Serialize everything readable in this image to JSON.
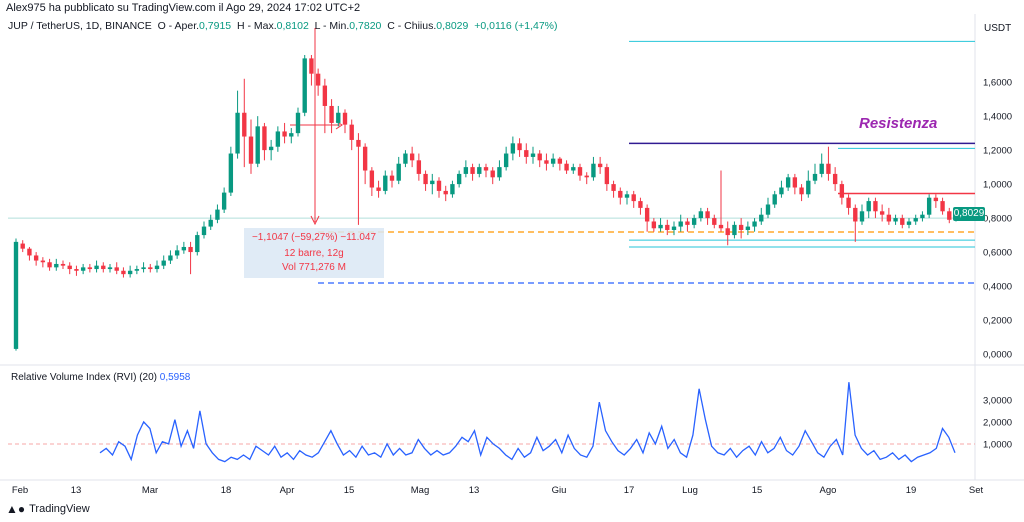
{
  "header": {
    "publisher": "Alex975 ha pubblicato su TradingView.com il Ago 29, 2024 17:02 UTC+2"
  },
  "symbol": {
    "name": "JUP / TetherUS, 1D, BINANCE",
    "open_label": "O - Aper.",
    "open": "0,7915",
    "high_label": "H - Max.",
    "high": "0,8102",
    "low_label": "L - Min.",
    "low": "0,7820",
    "close_label": "C - Chiius.",
    "close": "0,8029",
    "change": "+0,0116 (+1,47%)"
  },
  "colors": {
    "up": "#089981",
    "down": "#f23645",
    "rvi": "#2962ff",
    "resistance_text": "#9c27b0"
  },
  "chart_data": {
    "type": "candlestick",
    "currency_label": "USDT",
    "price_axis": {
      "ticks": [
        "1,6000",
        "1,4000",
        "1,2000",
        "1,0000",
        "0,8000",
        "0,6000",
        "0,4000",
        "0,2000",
        "0,0000"
      ],
      "range": [
        0.0,
        1.86
      ]
    },
    "x_ticks": [
      "Feb",
      "13",
      "Mar",
      "18",
      "Apr",
      "15",
      "Mag",
      "13",
      "Giu",
      "17",
      "Lug",
      "15",
      "Ago",
      "19",
      "Set"
    ],
    "last_price_label": "0,8029",
    "annotations": {
      "resistance_label": "Resistenza",
      "measure": {
        "line1": "−1,1047 (−59,27%) −11.047",
        "line2": "12 barre, 12g",
        "line3": "Vol 771,276 M"
      }
    },
    "levels": {
      "resistance_purple": 1.24,
      "resistance_red": 0.945,
      "support_orange_dashed": 0.718,
      "support_blue_dashed": 0.418,
      "top_cyan": 1.84,
      "cyan_upper": 1.21,
      "cyan_lower": 0.63
    },
    "candles": [
      [
        0.03,
        0.66,
        0.02,
        0.68
      ],
      [
        0.65,
        0.62,
        0.6,
        0.67
      ],
      [
        0.62,
        0.58,
        0.55,
        0.63
      ],
      [
        0.58,
        0.55,
        0.52,
        0.6
      ],
      [
        0.55,
        0.54,
        0.51,
        0.57
      ],
      [
        0.54,
        0.51,
        0.49,
        0.56
      ],
      [
        0.51,
        0.53,
        0.49,
        0.56
      ],
      [
        0.53,
        0.52,
        0.5,
        0.55
      ],
      [
        0.52,
        0.5,
        0.47,
        0.54
      ],
      [
        0.5,
        0.49,
        0.46,
        0.52
      ],
      [
        0.49,
        0.51,
        0.47,
        0.53
      ],
      [
        0.51,
        0.5,
        0.48,
        0.53
      ],
      [
        0.5,
        0.52,
        0.48,
        0.55
      ],
      [
        0.52,
        0.5,
        0.48,
        0.54
      ],
      [
        0.5,
        0.51,
        0.48,
        0.53
      ],
      [
        0.51,
        0.49,
        0.47,
        0.54
      ],
      [
        0.49,
        0.47,
        0.45,
        0.51
      ],
      [
        0.47,
        0.49,
        0.45,
        0.52
      ],
      [
        0.49,
        0.5,
        0.47,
        0.52
      ],
      [
        0.5,
        0.51,
        0.48,
        0.54
      ],
      [
        0.51,
        0.5,
        0.48,
        0.53
      ],
      [
        0.5,
        0.52,
        0.48,
        0.55
      ],
      [
        0.52,
        0.55,
        0.5,
        0.58
      ],
      [
        0.55,
        0.58,
        0.53,
        0.61
      ],
      [
        0.58,
        0.61,
        0.56,
        0.64
      ],
      [
        0.61,
        0.63,
        0.59,
        0.66
      ],
      [
        0.63,
        0.6,
        0.47,
        0.66
      ],
      [
        0.6,
        0.7,
        0.58,
        0.72
      ],
      [
        0.7,
        0.75,
        0.68,
        0.78
      ],
      [
        0.75,
        0.79,
        0.73,
        0.82
      ],
      [
        0.79,
        0.85,
        0.77,
        0.88
      ],
      [
        0.85,
        0.95,
        0.83,
        0.98
      ],
      [
        0.95,
        1.18,
        0.93,
        1.22
      ],
      [
        1.18,
        1.42,
        1.15,
        1.55
      ],
      [
        1.42,
        1.28,
        1.1,
        1.62
      ],
      [
        1.28,
        1.12,
        1.06,
        1.38
      ],
      [
        1.12,
        1.34,
        1.1,
        1.4
      ],
      [
        1.34,
        1.2,
        1.14,
        1.36
      ],
      [
        1.2,
        1.22,
        1.14,
        1.26
      ],
      [
        1.22,
        1.31,
        1.19,
        1.34
      ],
      [
        1.31,
        1.28,
        1.24,
        1.36
      ],
      [
        1.28,
        1.3,
        1.24,
        1.33
      ],
      [
        1.3,
        1.42,
        1.28,
        1.45
      ],
      [
        1.42,
        1.74,
        1.4,
        1.76
      ],
      [
        1.74,
        1.65,
        1.58,
        1.76
      ],
      [
        1.65,
        1.58,
        1.52,
        1.68
      ],
      [
        1.58,
        1.46,
        1.3,
        1.62
      ],
      [
        1.46,
        1.36,
        1.3,
        1.5
      ],
      [
        1.36,
        1.42,
        1.34,
        1.46
      ],
      [
        1.42,
        1.35,
        1.3,
        1.44
      ],
      [
        1.35,
        1.26,
        1.2,
        1.38
      ],
      [
        1.26,
        1.22,
        0.76,
        1.3
      ],
      [
        1.22,
        1.08,
        1.0,
        1.24
      ],
      [
        1.08,
        0.98,
        0.93,
        1.1
      ],
      [
        0.98,
        0.96,
        0.92,
        1.02
      ],
      [
        0.96,
        1.05,
        0.94,
        1.08
      ],
      [
        1.05,
        1.02,
        0.98,
        1.08
      ],
      [
        1.02,
        1.12,
        1.0,
        1.16
      ],
      [
        1.12,
        1.18,
        1.1,
        1.2
      ],
      [
        1.18,
        1.14,
        1.1,
        1.22
      ],
      [
        1.14,
        1.06,
        1.02,
        1.18
      ],
      [
        1.06,
        1.0,
        0.96,
        1.08
      ],
      [
        1.0,
        1.02,
        0.94,
        1.06
      ],
      [
        1.02,
        0.96,
        0.92,
        1.04
      ],
      [
        0.96,
        0.94,
        0.9,
        0.99
      ],
      [
        0.94,
        1.0,
        0.92,
        1.02
      ],
      [
        1.0,
        1.06,
        0.98,
        1.08
      ],
      [
        1.06,
        1.1,
        1.04,
        1.14
      ],
      [
        1.1,
        1.06,
        1.02,
        1.12
      ],
      [
        1.06,
        1.1,
        1.04,
        1.12
      ],
      [
        1.1,
        1.08,
        1.04,
        1.12
      ],
      [
        1.08,
        1.04,
        1.0,
        1.1
      ],
      [
        1.04,
        1.1,
        1.02,
        1.14
      ],
      [
        1.1,
        1.18,
        1.08,
        1.22
      ],
      [
        1.18,
        1.24,
        1.14,
        1.28
      ],
      [
        1.24,
        1.2,
        1.16,
        1.27
      ],
      [
        1.2,
        1.16,
        1.12,
        1.24
      ],
      [
        1.16,
        1.18,
        1.12,
        1.22
      ],
      [
        1.18,
        1.14,
        1.1,
        1.2
      ],
      [
        1.14,
        1.12,
        1.08,
        1.18
      ],
      [
        1.12,
        1.15,
        1.1,
        1.18
      ],
      [
        1.15,
        1.12,
        1.08,
        1.16
      ],
      [
        1.12,
        1.08,
        1.06,
        1.14
      ],
      [
        1.08,
        1.1,
        1.06,
        1.12
      ],
      [
        1.1,
        1.05,
        1.02,
        1.12
      ],
      [
        1.05,
        1.04,
        1.0,
        1.07
      ],
      [
        1.04,
        1.12,
        1.02,
        1.16
      ],
      [
        1.12,
        1.1,
        1.06,
        1.16
      ],
      [
        1.1,
        1.0,
        0.96,
        1.12
      ],
      [
        1.0,
        0.96,
        0.92,
        1.02
      ],
      [
        0.96,
        0.92,
        0.88,
        0.98
      ],
      [
        0.92,
        0.94,
        0.88,
        0.96
      ],
      [
        0.94,
        0.9,
        0.86,
        0.96
      ],
      [
        0.9,
        0.86,
        0.82,
        0.92
      ],
      [
        0.86,
        0.78,
        0.72,
        0.88
      ],
      [
        0.78,
        0.74,
        0.72,
        0.8
      ],
      [
        0.74,
        0.76,
        0.72,
        0.8
      ],
      [
        0.76,
        0.73,
        0.7,
        0.79
      ],
      [
        0.73,
        0.75,
        0.7,
        0.78
      ],
      [
        0.75,
        0.78,
        0.72,
        0.82
      ],
      [
        0.78,
        0.76,
        0.72,
        0.8
      ],
      [
        0.76,
        0.8,
        0.74,
        0.82
      ],
      [
        0.8,
        0.84,
        0.78,
        0.86
      ],
      [
        0.84,
        0.8,
        0.76,
        0.86
      ],
      [
        0.8,
        0.76,
        0.74,
        0.82
      ],
      [
        0.76,
        0.74,
        0.72,
        1.08
      ],
      [
        0.74,
        0.7,
        0.64,
        0.78
      ],
      [
        0.7,
        0.76,
        0.68,
        0.78
      ],
      [
        0.76,
        0.73,
        0.68,
        0.8
      ],
      [
        0.73,
        0.75,
        0.7,
        0.78
      ],
      [
        0.75,
        0.78,
        0.72,
        0.8
      ],
      [
        0.78,
        0.82,
        0.76,
        0.86
      ],
      [
        0.82,
        0.88,
        0.8,
        0.92
      ],
      [
        0.88,
        0.94,
        0.86,
        0.96
      ],
      [
        0.94,
        0.98,
        0.92,
        1.02
      ],
      [
        0.98,
        1.04,
        0.96,
        1.06
      ],
      [
        1.04,
        0.98,
        0.94,
        1.06
      ],
      [
        0.98,
        0.94,
        0.9,
        1.0
      ],
      [
        0.94,
        1.02,
        0.92,
        1.08
      ],
      [
        1.02,
        1.06,
        1.0,
        1.12
      ],
      [
        1.06,
        1.12,
        1.04,
        1.18
      ],
      [
        1.12,
        1.06,
        1.02,
        1.22
      ],
      [
        1.06,
        1.0,
        0.96,
        1.1
      ],
      [
        1.0,
        0.92,
        0.88,
        1.02
      ],
      [
        0.92,
        0.86,
        0.82,
        0.94
      ],
      [
        0.86,
        0.78,
        0.66,
        0.88
      ],
      [
        0.78,
        0.84,
        0.76,
        0.88
      ],
      [
        0.84,
        0.9,
        0.8,
        0.92
      ],
      [
        0.9,
        0.84,
        0.8,
        0.92
      ],
      [
        0.84,
        0.82,
        0.78,
        0.88
      ],
      [
        0.82,
        0.78,
        0.76,
        0.86
      ],
      [
        0.78,
        0.8,
        0.76,
        0.82
      ],
      [
        0.8,
        0.76,
        0.74,
        0.82
      ],
      [
        0.76,
        0.78,
        0.74,
        0.8
      ],
      [
        0.78,
        0.8,
        0.76,
        0.82
      ],
      [
        0.8,
        0.82,
        0.78,
        0.84
      ],
      [
        0.82,
        0.92,
        0.8,
        0.94
      ],
      [
        0.92,
        0.9,
        0.86,
        0.94
      ],
      [
        0.9,
        0.84,
        0.82,
        0.92
      ],
      [
        0.84,
        0.79,
        0.77,
        0.86
      ],
      [
        0.79,
        0.8029,
        0.78,
        0.81
      ]
    ],
    "rvi": {
      "label": "Relative Volume Index (RVI) (20)",
      "value": "0,5958",
      "axis_ticks": [
        "3,0000",
        "2,0000",
        "1,0000"
      ],
      "range": [
        0,
        3.9
      ],
      "values": [
        0.6,
        0.8,
        0.5,
        1.1,
        0.9,
        0.3,
        1.4,
        2.0,
        1.7,
        0.6,
        1.1,
        1.0,
        2.1,
        0.9,
        1.6,
        0.8,
        2.5,
        1.0,
        0.6,
        0.3,
        0.2,
        0.4,
        0.3,
        0.5,
        0.3,
        0.9,
        0.7,
        0.5,
        0.9,
        0.4,
        0.6,
        0.3,
        0.7,
        0.5,
        0.4,
        0.6,
        1.1,
        1.6,
        1.0,
        0.5,
        0.7,
        0.4,
        0.9,
        0.5,
        0.6,
        0.4,
        1.0,
        0.5,
        0.8,
        0.5,
        0.6,
        1.2,
        0.8,
        0.5,
        0.7,
        0.5,
        0.6,
        0.9,
        1.3,
        1.1,
        1.6,
        0.5,
        1.3,
        1.0,
        0.8,
        0.5,
        0.3,
        0.8,
        0.4,
        0.6,
        1.3,
        0.7,
        0.9,
        1.2,
        0.6,
        1.4,
        0.8,
        0.5,
        0.4,
        0.9,
        2.9,
        1.6,
        1.1,
        0.7,
        0.5,
        0.8,
        1.2,
        0.6,
        1.5,
        1.0,
        1.8,
        0.8,
        1.2,
        0.6,
        0.4,
        1.4,
        3.5,
        2.1,
        0.9,
        0.6,
        0.5,
        0.8,
        0.4,
        0.7,
        0.9,
        0.5,
        1.1,
        0.6,
        0.8,
        1.3,
        0.7,
        0.5,
        0.9,
        1.6,
        1.1,
        0.6,
        0.4,
        0.9,
        1.2,
        0.5,
        3.8,
        1.4,
        0.8,
        0.5,
        0.7,
        0.3,
        0.4,
        0.6,
        0.3,
        0.5,
        0.2,
        0.4,
        0.5,
        0.6,
        0.8,
        1.7,
        1.3,
        0.6
      ]
    }
  },
  "footer": {
    "brand": "TradingView"
  }
}
